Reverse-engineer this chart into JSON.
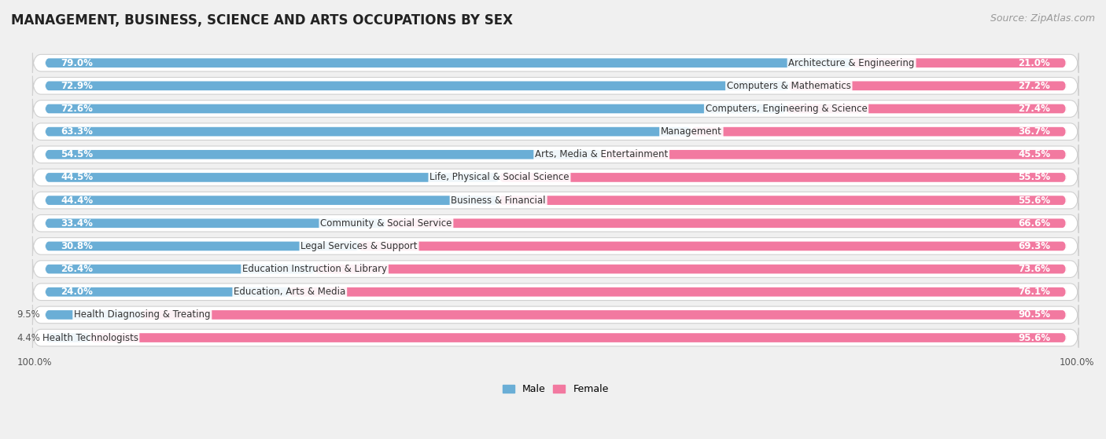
{
  "title": "MANAGEMENT, BUSINESS, SCIENCE AND ARTS OCCUPATIONS BY SEX",
  "source": "Source: ZipAtlas.com",
  "categories": [
    "Architecture & Engineering",
    "Computers & Mathematics",
    "Computers, Engineering & Science",
    "Management",
    "Arts, Media & Entertainment",
    "Life, Physical & Social Science",
    "Business & Financial",
    "Community & Social Service",
    "Legal Services & Support",
    "Education Instruction & Library",
    "Education, Arts & Media",
    "Health Diagnosing & Treating",
    "Health Technologists"
  ],
  "male_pct": [
    79.0,
    72.9,
    72.6,
    63.3,
    54.5,
    44.5,
    44.4,
    33.4,
    30.8,
    26.4,
    24.0,
    9.5,
    4.4
  ],
  "female_pct": [
    21.0,
    27.2,
    27.4,
    36.7,
    45.5,
    55.5,
    55.6,
    66.6,
    69.3,
    73.6,
    76.1,
    90.5,
    95.6
  ],
  "male_color": "#6aaed6",
  "female_color": "#f279a0",
  "bg_color": "#f0f0f0",
  "row_bg": "#ffffff",
  "row_border": "#d0d0d0",
  "title_fontsize": 12,
  "label_fontsize": 8.5,
  "pct_fontsize": 8.5,
  "source_fontsize": 9
}
